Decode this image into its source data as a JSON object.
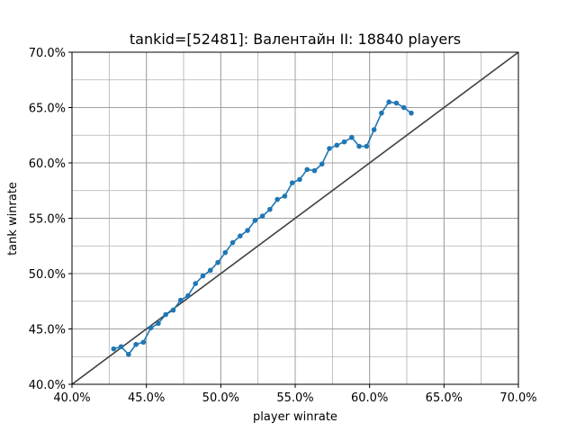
{
  "chart_data": {
    "type": "line",
    "title": "tankid=[52481]: Валентайн II: 18840 players",
    "xlabel": "player winrate",
    "ylabel": "tank winrate",
    "xlim": [
      40.0,
      70.0
    ],
    "ylim": [
      40.0,
      70.0
    ],
    "x_ticks": [
      "40.0%",
      "45.0%",
      "50.0%",
      "55.0%",
      "60.0%",
      "65.0%",
      "70.0%"
    ],
    "y_ticks": [
      "40.0%",
      "45.0%",
      "50.0%",
      "55.0%",
      "60.0%",
      "65.0%",
      "70.0%"
    ],
    "x_tick_values": [
      40,
      45,
      50,
      55,
      60,
      65,
      70
    ],
    "y_tick_values": [
      40,
      45,
      50,
      55,
      60,
      65,
      70
    ],
    "minor_grid_step": 2.5,
    "grid": true,
    "reference_line": {
      "from": [
        40,
        40
      ],
      "to": [
        70,
        70
      ],
      "color": "#404040"
    },
    "series": [
      {
        "color": "#1f77b4",
        "marker": "circle",
        "x": [
          42.8,
          43.3,
          43.8,
          44.3,
          44.8,
          45.3,
          45.8,
          46.3,
          46.8,
          47.3,
          47.8,
          48.3,
          48.8,
          49.3,
          49.8,
          50.3,
          50.8,
          51.3,
          51.8,
          52.3,
          52.8,
          53.3,
          53.8,
          54.3,
          54.8,
          55.3,
          55.8,
          56.3,
          56.8,
          57.3,
          57.8,
          58.3,
          58.8,
          59.3,
          59.8,
          60.3,
          60.8,
          61.3,
          61.8,
          62.3,
          62.8
        ],
        "y": [
          43.2,
          43.4,
          42.7,
          43.6,
          43.8,
          45.1,
          45.5,
          46.3,
          46.7,
          47.6,
          48.0,
          49.1,
          49.8,
          50.3,
          51.0,
          51.9,
          52.8,
          53.4,
          53.9,
          54.8,
          55.2,
          55.8,
          56.7,
          57.0,
          58.2,
          58.5,
          59.4,
          59.3,
          59.9,
          61.3,
          61.6,
          61.9,
          62.3,
          61.5,
          61.5,
          63.0,
          64.5,
          65.5,
          65.4,
          65.0,
          64.5
        ]
      }
    ]
  }
}
